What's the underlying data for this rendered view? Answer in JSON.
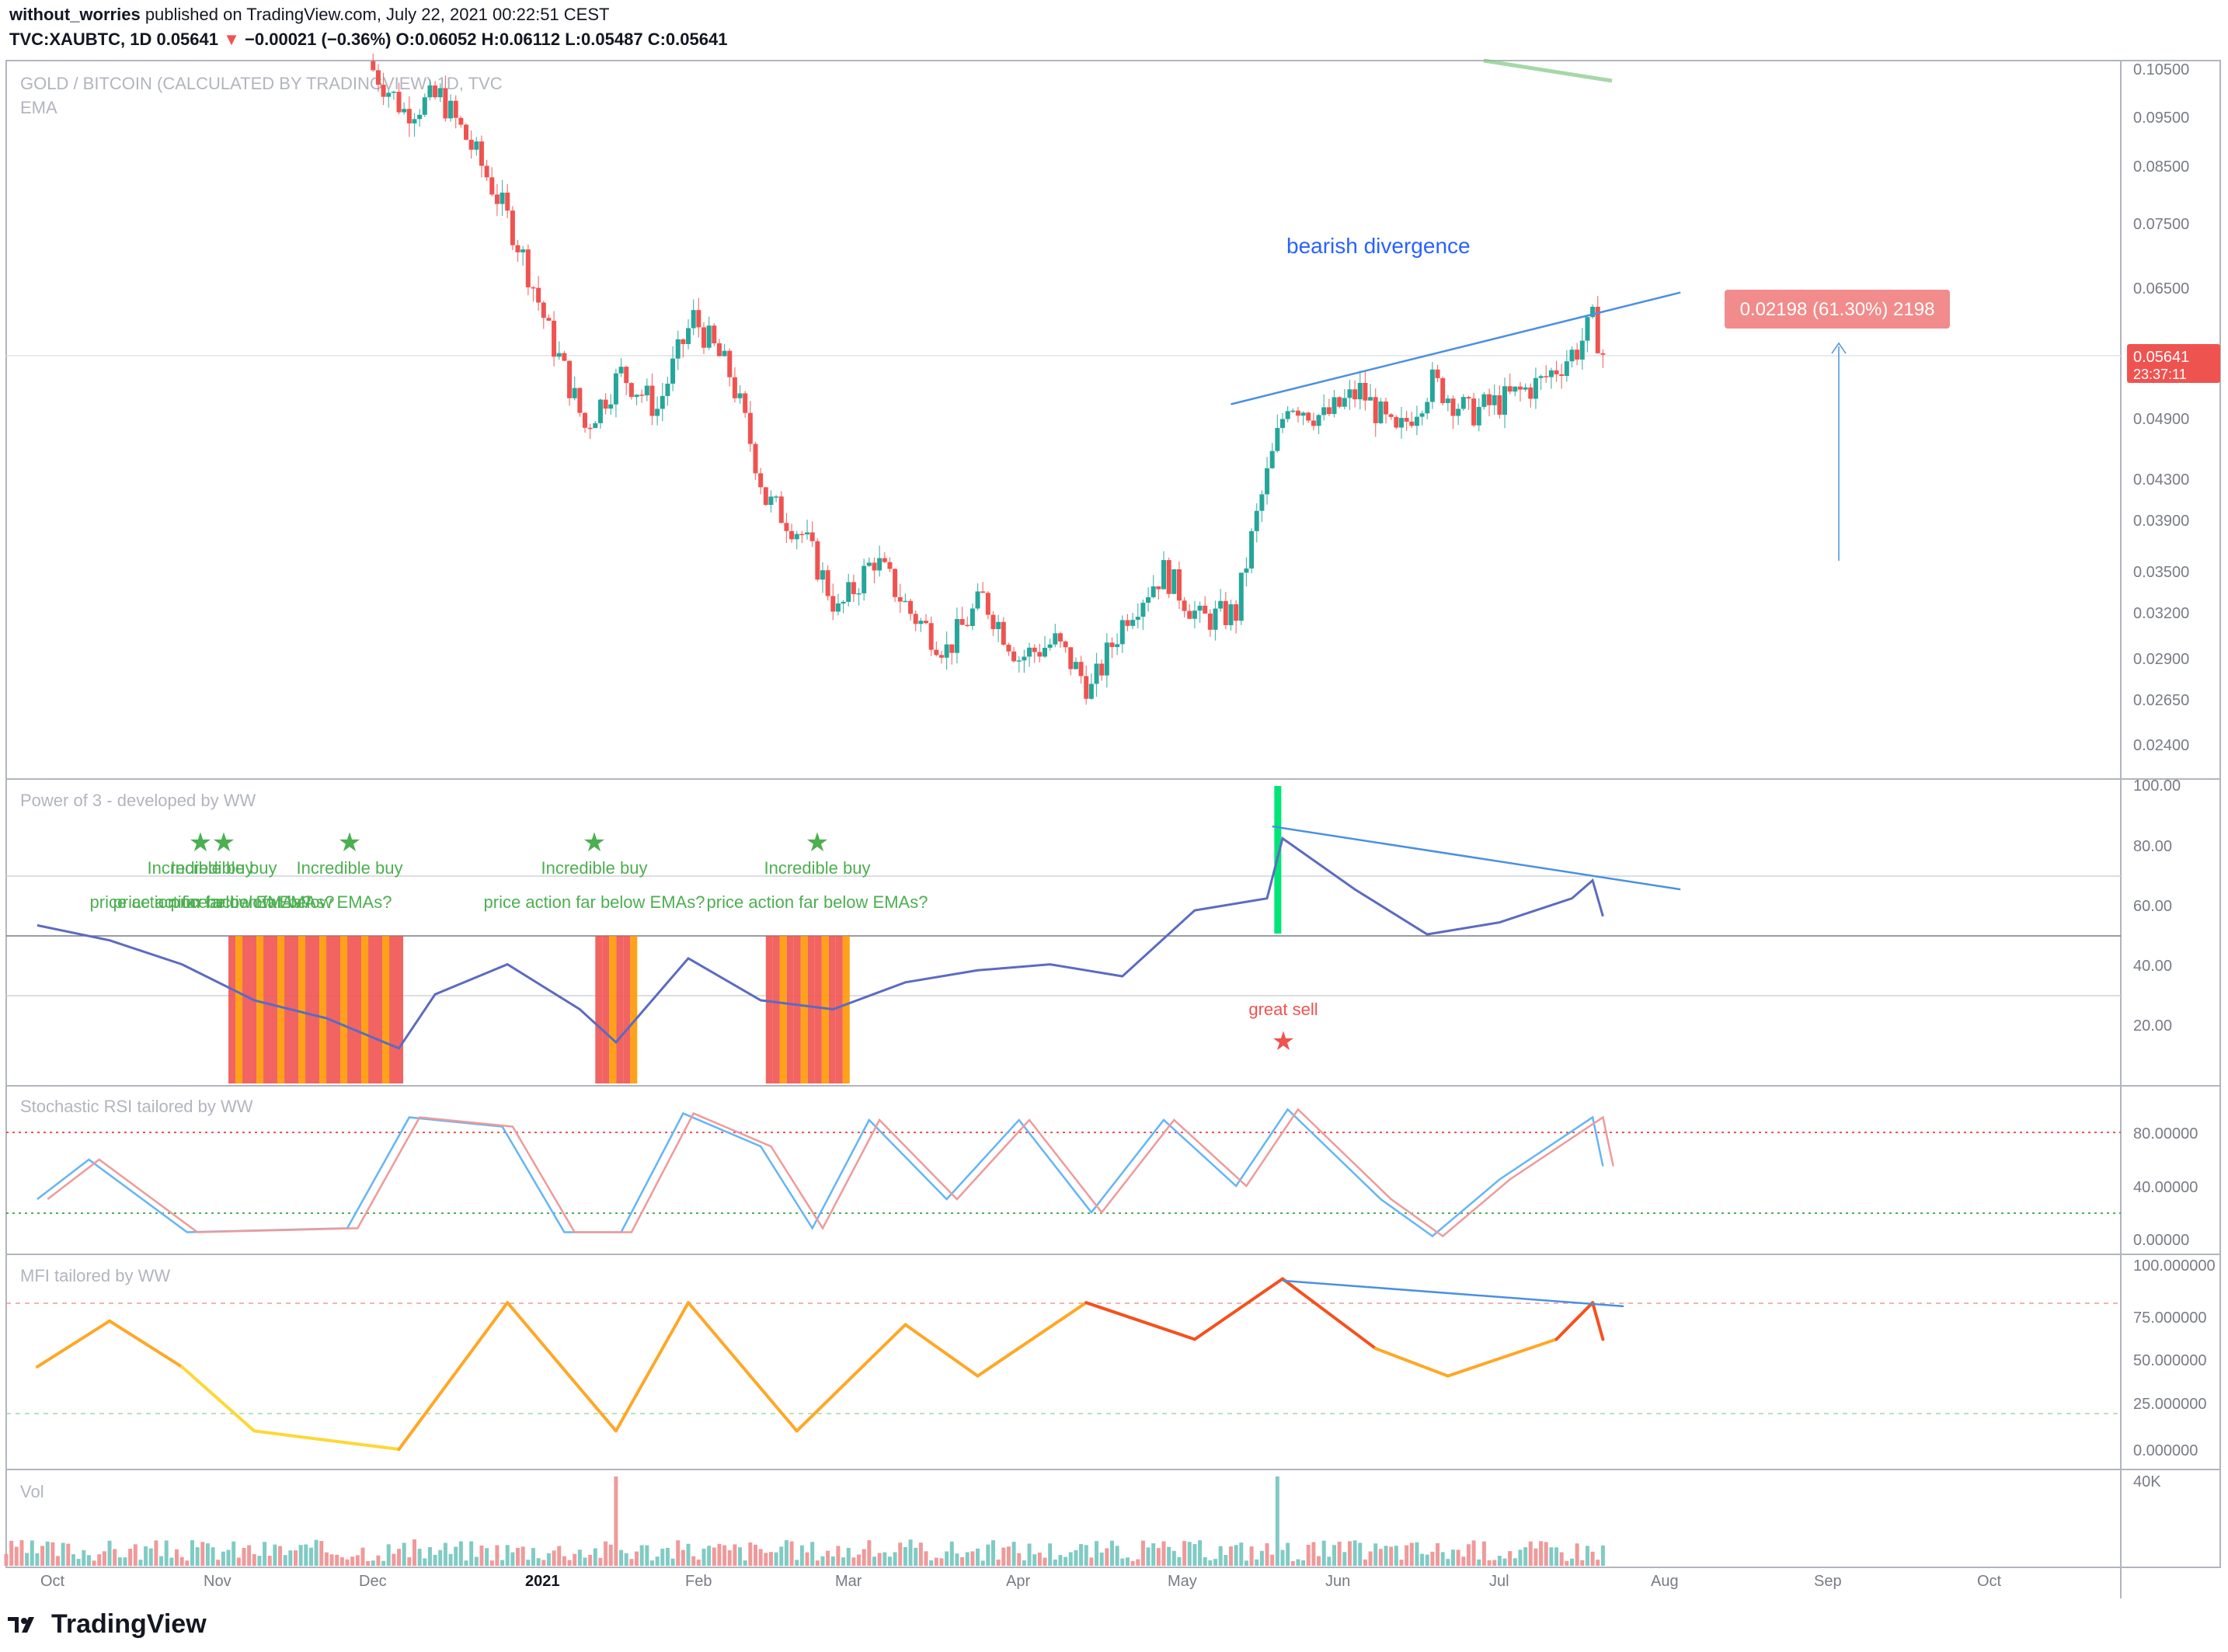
{
  "header": {
    "author": "without_worries",
    "published_text": "published on TradingView.com, July 22, 2021 00:22:51 CEST",
    "symbol": "TVC:XAUBTC, 1D",
    "last": "0.05641",
    "change": "−0.00021 (−0.36%)",
    "open": "O:0.06052",
    "high": "H:0.06112",
    "low": "L:0.05487",
    "close": "C:0.05641"
  },
  "main_pane": {
    "title": "GOLD / BITCOIN (CALCULATED BY TRADINGVIEW) 1D, TVC",
    "indicator": "EMA",
    "annotation": "bearish divergence",
    "measure_label": "0.02198 (61.30%) 2198",
    "price_badge": "0.05641",
    "countdown": "23:37:11",
    "y_ticks": [
      "0.10500",
      "0.09500",
      "0.08500",
      "0.07500",
      "0.06500",
      "0.05641",
      "0.04900",
      "0.04300",
      "0.03900",
      "0.03500",
      "0.03200",
      "0.02900",
      "0.02650",
      "0.02400"
    ],
    "colors": {
      "up": "#26a69a",
      "down": "#ef5350",
      "trendline": "#4a90e2",
      "ema": "#81c784"
    }
  },
  "power_pane": {
    "title": "Power of 3 - developed by WW",
    "y_ticks": [
      "100.00",
      "80.00",
      "60.00",
      "40.00",
      "20.00"
    ],
    "buy_label": "Incredible buy",
    "buy_sub": "price action far below EMAs?",
    "sell_label": "great sell"
  },
  "stoch_pane": {
    "title": "Stochastic RSI tailored by WW",
    "y_ticks": [
      "80.00000",
      "40.00000",
      "0.00000"
    ]
  },
  "mfi_pane": {
    "title": "MFI tailored by WW",
    "y_ticks": [
      "100.000000",
      "75.000000",
      "50.000000",
      "25.000000",
      "0.000000"
    ]
  },
  "vol_pane": {
    "title": "Vol",
    "y_ticks": [
      "40K"
    ]
  },
  "x_axis": {
    "labels": [
      "Oct",
      "Nov",
      "Dec",
      "2021",
      "Feb",
      "Mar",
      "Apr",
      "May",
      "Jun",
      "Jul",
      "Aug",
      "Sep",
      "Oct"
    ]
  },
  "brand": "TradingView",
  "chart_data": {
    "type": "candlestick",
    "x_range": [
      "2020-09-21",
      "2021-07-21"
    ],
    "price_close_path": [
      {
        "x": "2020-11-25",
        "y": 0.105
      },
      {
        "x": "2020-12-01",
        "y": 0.096
      },
      {
        "x": "2020-12-08",
        "y": 0.099
      },
      {
        "x": "2020-12-15",
        "y": 0.087
      },
      {
        "x": "2020-12-22",
        "y": 0.074
      },
      {
        "x": "2020-12-29",
        "y": 0.059
      },
      {
        "x": "2021-01-05",
        "y": 0.048
      },
      {
        "x": "2021-01-12",
        "y": 0.054
      },
      {
        "x": "2021-01-19",
        "y": 0.05
      },
      {
        "x": "2021-01-26",
        "y": 0.061
      },
      {
        "x": "2021-02-02",
        "y": 0.054
      },
      {
        "x": "2021-02-09",
        "y": 0.041
      },
      {
        "x": "2021-02-16",
        "y": 0.038
      },
      {
        "x": "2021-02-23",
        "y": 0.032
      },
      {
        "x": "2021-03-02",
        "y": 0.036
      },
      {
        "x": "2021-03-09",
        "y": 0.032
      },
      {
        "x": "2021-03-16",
        "y": 0.0295
      },
      {
        "x": "2021-03-23",
        "y": 0.033
      },
      {
        "x": "2021-03-30",
        "y": 0.029
      },
      {
        "x": "2021-04-06",
        "y": 0.03
      },
      {
        "x": "2021-04-13",
        "y": 0.027
      },
      {
        "x": "2021-04-20",
        "y": 0.032
      },
      {
        "x": "2021-04-27",
        "y": 0.035
      },
      {
        "x": "2021-05-04",
        "y": 0.0315
      },
      {
        "x": "2021-05-11",
        "y": 0.032
      },
      {
        "x": "2021-05-18",
        "y": 0.045
      },
      {
        "x": "2021-05-21",
        "y": 0.051
      },
      {
        "x": "2021-05-28",
        "y": 0.049
      },
      {
        "x": "2021-06-04",
        "y": 0.052
      },
      {
        "x": "2021-06-11",
        "y": 0.047
      },
      {
        "x": "2021-06-18",
        "y": 0.053
      },
      {
        "x": "2021-06-25",
        "y": 0.0495
      },
      {
        "x": "2021-07-02",
        "y": 0.051
      },
      {
        "x": "2021-07-09",
        "y": 0.053
      },
      {
        "x": "2021-07-16",
        "y": 0.057
      },
      {
        "x": "2021-07-19",
        "y": 0.0605
      },
      {
        "x": "2021-07-21",
        "y": 0.0564
      }
    ],
    "trendline_price": [
      {
        "x": "2021-05-10",
        "y": 0.0505
      },
      {
        "x": "2021-08-05",
        "y": 0.0645
      }
    ],
    "measure": {
      "from": 0.0359,
      "to": 0.0564,
      "change": "0.02198",
      "pct": "61.30%"
    },
    "power_of_3": [
      {
        "x": "2020-09-21",
        "y": 53
      },
      {
        "x": "2020-10-05",
        "y": 48
      },
      {
        "x": "2020-10-19",
        "y": 40
      },
      {
        "x": "2020-11-02",
        "y": 28
      },
      {
        "x": "2020-11-16",
        "y": 22
      },
      {
        "x": "2020-11-30",
        "y": 12
      },
      {
        "x": "2020-12-07",
        "y": 30
      },
      {
        "x": "2020-12-21",
        "y": 40
      },
      {
        "x": "2021-01-04",
        "y": 25
      },
      {
        "x": "2021-01-11",
        "y": 14
      },
      {
        "x": "2021-01-25",
        "y": 42
      },
      {
        "x": "2021-02-08",
        "y": 28
      },
      {
        "x": "2021-02-22",
        "y": 25
      },
      {
        "x": "2021-03-08",
        "y": 34
      },
      {
        "x": "2021-03-22",
        "y": 38
      },
      {
        "x": "2021-04-05",
        "y": 40
      },
      {
        "x": "2021-04-19",
        "y": 36
      },
      {
        "x": "2021-05-03",
        "y": 58
      },
      {
        "x": "2021-05-17",
        "y": 62
      },
      {
        "x": "2021-05-20",
        "y": 82
      },
      {
        "x": "2021-06-03",
        "y": 65
      },
      {
        "x": "2021-06-17",
        "y": 50
      },
      {
        "x": "2021-07-01",
        "y": 54
      },
      {
        "x": "2021-07-15",
        "y": 62
      },
      {
        "x": "2021-07-19",
        "y": 68
      },
      {
        "x": "2021-07-21",
        "y": 56
      }
    ],
    "stoch_rsi": [
      {
        "x": "2020-09-21",
        "y": 30
      },
      {
        "x": "2020-10-01",
        "y": 60
      },
      {
        "x": "2020-10-20",
        "y": 5
      },
      {
        "x": "2020-11-20",
        "y": 8
      },
      {
        "x": "2020-12-02",
        "y": 92
      },
      {
        "x": "2020-12-20",
        "y": 85
      },
      {
        "x": "2021-01-01",
        "y": 5
      },
      {
        "x": "2021-01-12",
        "y": 5
      },
      {
        "x": "2021-01-24",
        "y": 95
      },
      {
        "x": "2021-02-08",
        "y": 70
      },
      {
        "x": "2021-02-18",
        "y": 8
      },
      {
        "x": "2021-03-01",
        "y": 90
      },
      {
        "x": "2021-03-16",
        "y": 30
      },
      {
        "x": "2021-03-30",
        "y": 90
      },
      {
        "x": "2021-04-13",
        "y": 20
      },
      {
        "x": "2021-04-27",
        "y": 90
      },
      {
        "x": "2021-05-11",
        "y": 40
      },
      {
        "x": "2021-05-21",
        "y": 98
      },
      {
        "x": "2021-06-08",
        "y": 30
      },
      {
        "x": "2021-06-18",
        "y": 2
      },
      {
        "x": "2021-07-01",
        "y": 45
      },
      {
        "x": "2021-07-19",
        "y": 92
      },
      {
        "x": "2021-07-21",
        "y": 55
      }
    ],
    "mfi": [
      {
        "x": "2020-09-21",
        "y": 45
      },
      {
        "x": "2020-10-05",
        "y": 70
      },
      {
        "x": "2020-10-19",
        "y": 45
      },
      {
        "x": "2020-11-02",
        "y": 10
      },
      {
        "x": "2020-11-30",
        "y": 0
      },
      {
        "x": "2020-12-21",
        "y": 80
      },
      {
        "x": "2021-01-11",
        "y": 10
      },
      {
        "x": "2021-01-25",
        "y": 80
      },
      {
        "x": "2021-02-15",
        "y": 10
      },
      {
        "x": "2021-03-08",
        "y": 68
      },
      {
        "x": "2021-03-22",
        "y": 40
      },
      {
        "x": "2021-04-12",
        "y": 80
      },
      {
        "x": "2021-05-03",
        "y": 60
      },
      {
        "x": "2021-05-20",
        "y": 93
      },
      {
        "x": "2021-06-07",
        "y": 55
      },
      {
        "x": "2021-06-21",
        "y": 40
      },
      {
        "x": "2021-07-12",
        "y": 60
      },
      {
        "x": "2021-07-19",
        "y": 80
      },
      {
        "x": "2021-07-21",
        "y": 60
      }
    ],
    "mfi_trendline": [
      {
        "x": "2021-05-20",
        "y": 92
      },
      {
        "x": "2021-07-25",
        "y": 78
      }
    ],
    "power_trendline": [
      {
        "x": "2021-05-18",
        "y": 86
      },
      {
        "x": "2021-08-05",
        "y": 65
      }
    ]
  }
}
